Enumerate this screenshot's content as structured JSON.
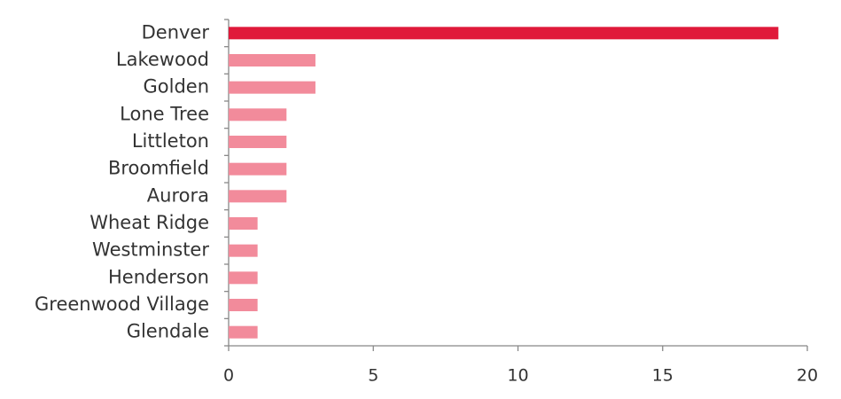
{
  "chart_data": {
    "type": "bar",
    "orientation": "horizontal",
    "categories": [
      "Denver",
      "Lakewood",
      "Golden",
      "Lone Tree",
      "Littleton",
      "Broomfield",
      "Aurora",
      "Wheat Ridge",
      "Westminster",
      "Henderson",
      "Greenwood Village",
      "Glendale"
    ],
    "values": [
      19,
      3,
      3,
      2,
      2,
      2,
      2,
      1,
      1,
      1,
      1,
      1
    ],
    "colors": [
      "#e0193a",
      "#f28b9b",
      "#f28b9b",
      "#f28b9b",
      "#f28b9b",
      "#f28b9b",
      "#f28b9b",
      "#f28b9b",
      "#f28b9b",
      "#f28b9b",
      "#f28b9b",
      "#f28b9b"
    ],
    "xlim": [
      0,
      20
    ],
    "xticks": [
      0,
      5,
      10,
      15,
      20
    ],
    "grid": false
  }
}
